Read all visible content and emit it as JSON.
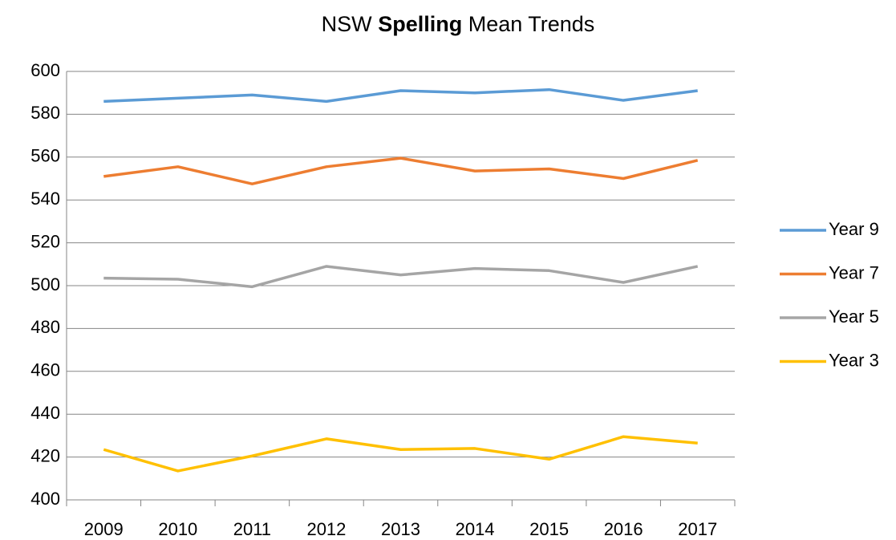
{
  "chart_data": {
    "type": "line",
    "title_parts": [
      "NSW",
      "Spelling",
      "Mean Trends"
    ],
    "categories": [
      "2009",
      "2010",
      "2011",
      "2012",
      "2013",
      "2014",
      "2015",
      "2016",
      "2017"
    ],
    "series": [
      {
        "name": "Year 9",
        "color": "#5b9bd5",
        "values": [
          586,
          587.5,
          589,
          586,
          591,
          590,
          591.5,
          586.5,
          591
        ]
      },
      {
        "name": "Year 7",
        "color": "#ed7d31",
        "values": [
          551,
          555.5,
          547.5,
          555.5,
          559.5,
          553.5,
          554.5,
          550,
          558.5
        ]
      },
      {
        "name": "Year 5",
        "color": "#a5a5a5",
        "values": [
          503.5,
          503,
          499.5,
          509,
          505,
          508,
          507,
          501.5,
          509
        ]
      },
      {
        "name": "Year 3",
        "color": "#ffc000",
        "values": [
          423.5,
          413.5,
          420.5,
          428.5,
          423.5,
          424,
          419,
          429.5,
          426.5
        ]
      }
    ],
    "ylim": [
      400,
      600
    ],
    "yticks": [
      400,
      420,
      440,
      460,
      480,
      500,
      520,
      540,
      560,
      580,
      600
    ],
    "grid": true,
    "legend": "right"
  }
}
